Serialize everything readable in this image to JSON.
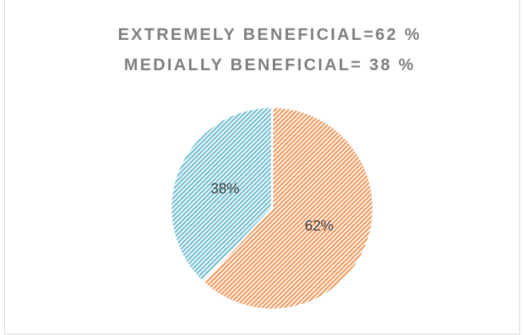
{
  "chart_data": {
    "type": "pie",
    "title_lines": [
      "EXTREMELY BENEFICIAL=62 %",
      "MEDIALLY BENEFICIAL= 38 %"
    ],
    "values": [
      62,
      38
    ],
    "value_labels": [
      "62%",
      "38%"
    ],
    "colors": [
      "#ed7d31",
      "#4bacc6"
    ]
  }
}
